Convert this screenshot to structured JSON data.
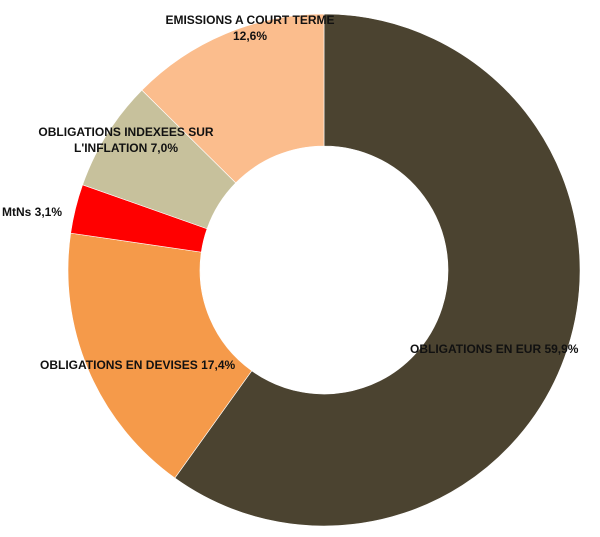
{
  "chart_data": {
    "type": "pie",
    "donut": true,
    "title": "",
    "legend": "none",
    "slices": [
      {
        "label": "OBLIGATIONS EN EUR",
        "value": 59.9,
        "value_label": "59,9%",
        "color": "#4b4330"
      },
      {
        "label": "OBLIGATIONS EN  DEVISES",
        "value": 17.4,
        "value_label": "17,4%",
        "color": "#f59a4a"
      },
      {
        "label": "MtNs",
        "value": 3.1,
        "value_label": "3,1%",
        "color": "#ff0000"
      },
      {
        "label": "OBLIGATIONS INDEXEES SUR L'INFLATION",
        "value": 7.0,
        "value_label": "7,0%",
        "color": "#c7c19c"
      },
      {
        "label": "EMISSIONS A COURT TERME",
        "value": 12.6,
        "value_label": "12,6%",
        "color": "#fbbd8d"
      }
    ]
  },
  "labels": {
    "eur": "OBLIGATIONS EN EUR 59,9%",
    "devises": "OBLIGATIONS EN  DEVISES 17,4%",
    "mtns": "MtNs 3,1%",
    "inflation_line1": "OBLIGATIONS INDEXEES SUR",
    "inflation_line2": "L'INFLATION 7,0%",
    "court_line1": "EMISSIONS A COURT TERME",
    "court_line2": "12,6%"
  }
}
